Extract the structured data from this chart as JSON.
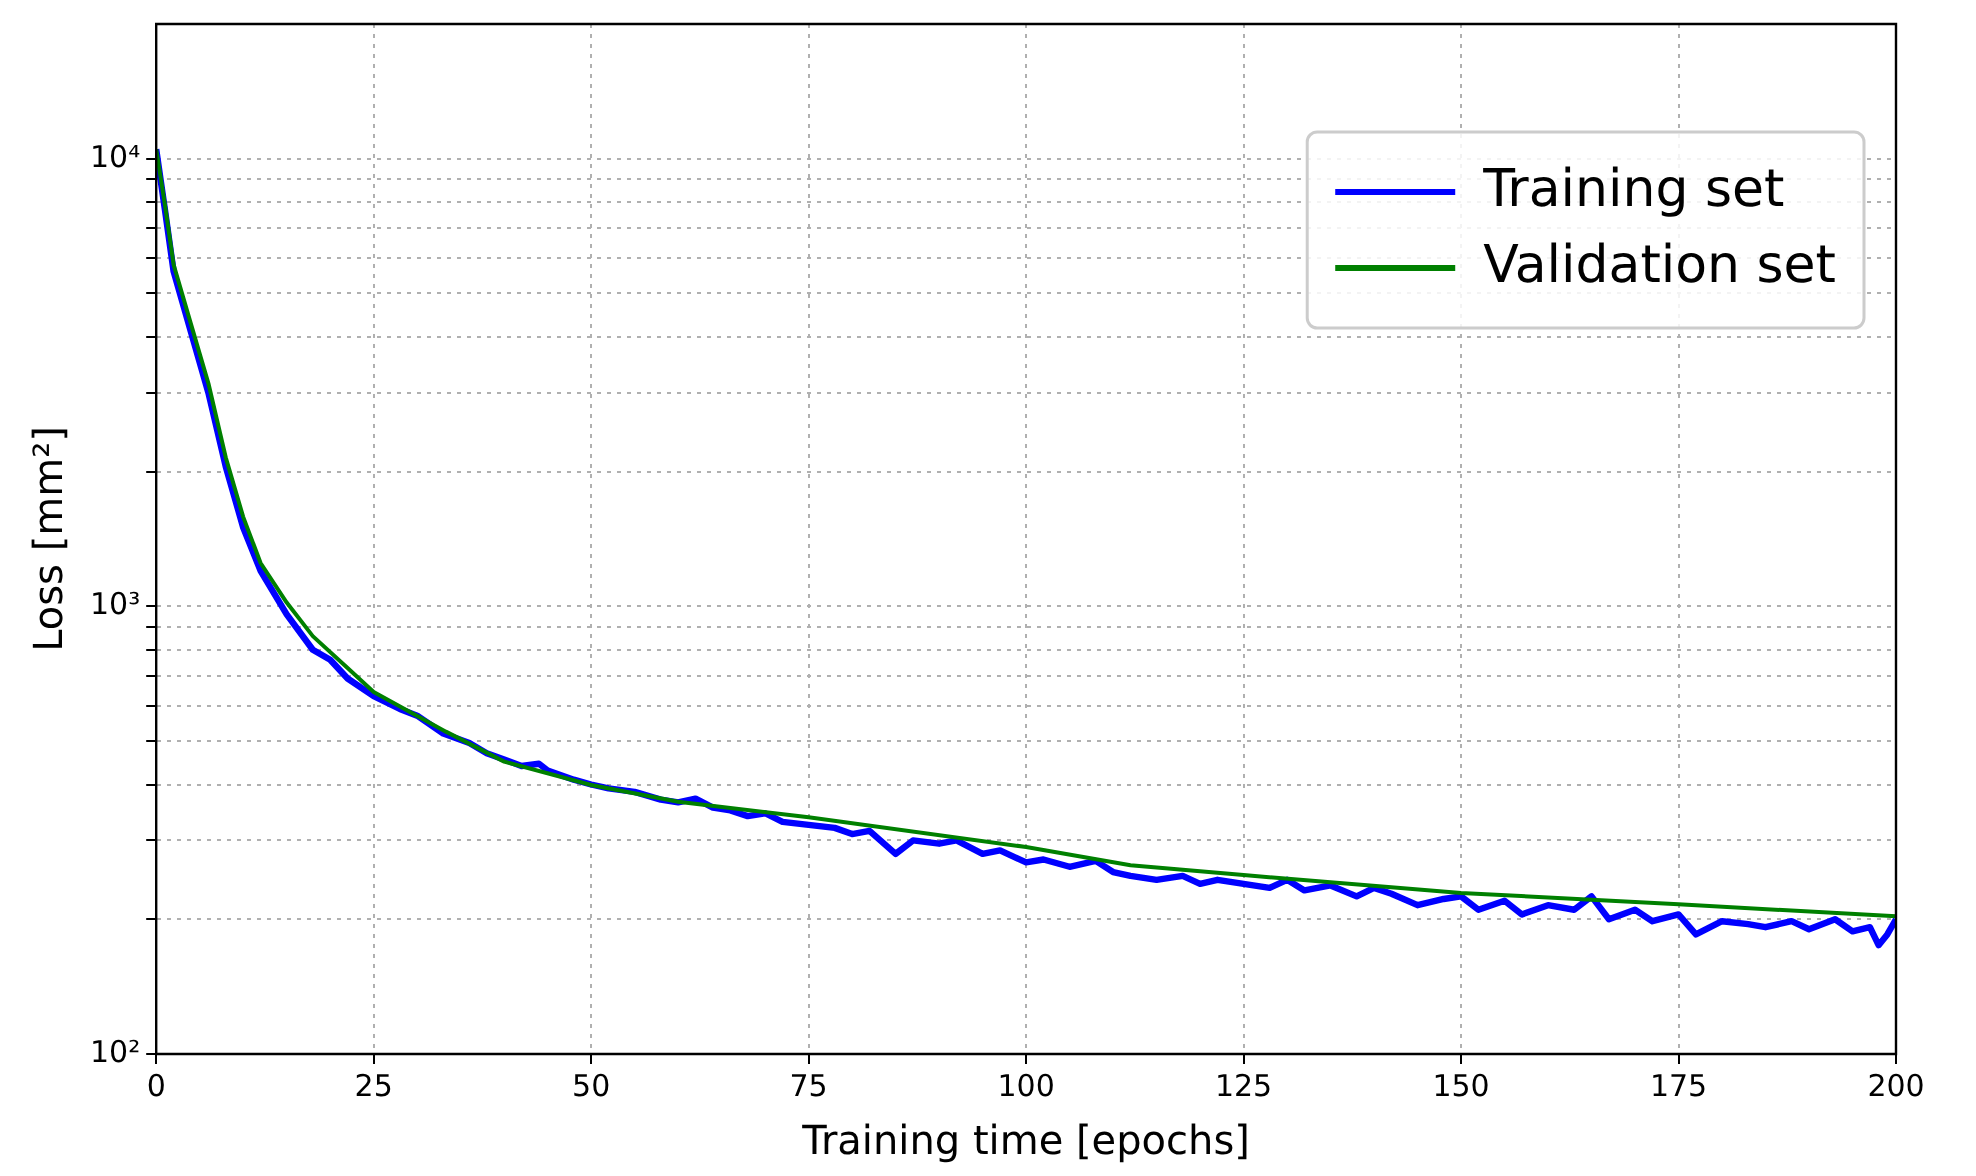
{
  "chart_data": {
    "type": "line",
    "xlabel": "Training time [epochs]",
    "ylabel": "Loss [mm²]",
    "xlim": [
      0,
      200
    ],
    "xticks": [
      0,
      25,
      50,
      75,
      100,
      125,
      150,
      175,
      200
    ],
    "ylim": [
      100,
      20000
    ],
    "log": "y",
    "yticks": [
      {
        "value": 100,
        "label": "10²"
      },
      {
        "value": 200,
        "label": null
      },
      {
        "value": 300,
        "label": null
      },
      {
        "value": 400,
        "label": null
      },
      {
        "value": 500,
        "label": null
      },
      {
        "value": 600,
        "label": null
      },
      {
        "value": 700,
        "label": null
      },
      {
        "value": 800,
        "label": null
      },
      {
        "value": 900,
        "label": null
      },
      {
        "value": 1000,
        "label": "10³"
      },
      {
        "value": 2000,
        "label": null
      },
      {
        "value": 3000,
        "label": null
      },
      {
        "value": 4000,
        "label": null
      },
      {
        "value": 5000,
        "label": null
      },
      {
        "value": 6000,
        "label": null
      },
      {
        "value": 7000,
        "label": null
      },
      {
        "value": 8000,
        "label": null
      },
      {
        "value": 9000,
        "label": null
      },
      {
        "value": 10000,
        "label": "10⁴"
      }
    ],
    "grid": true,
    "legend": "top right",
    "line_style": "solid",
    "marker": "none",
    "series": [
      {
        "name": "Training set",
        "color": "#0000ff",
        "x": [
          0,
          1,
          2,
          4,
          6,
          8,
          10,
          12,
          15,
          18,
          20,
          22,
          25,
          28,
          30,
          33,
          36,
          38,
          40,
          42,
          44,
          45,
          48,
          50,
          52,
          55,
          58,
          60,
          62,
          64,
          66,
          68,
          70,
          72,
          75,
          78,
          80,
          82,
          85,
          87,
          90,
          92,
          95,
          97,
          100,
          102,
          105,
          108,
          110,
          112,
          115,
          118,
          120,
          122,
          125,
          128,
          130,
          132,
          135,
          138,
          140,
          142,
          145,
          148,
          150,
          152,
          155,
          157,
          160,
          163,
          165,
          167,
          170,
          172,
          175,
          177,
          180,
          183,
          185,
          188,
          190,
          193,
          195,
          197,
          198,
          199,
          200
        ],
        "values": [
          10500,
          7700,
          5600,
          4100,
          3000,
          2050,
          1500,
          1200,
          960,
          800,
          760,
          690,
          630,
          590,
          570,
          520,
          495,
          470,
          455,
          440,
          445,
          430,
          410,
          400,
          392,
          385,
          370,
          365,
          372,
          355,
          350,
          340,
          345,
          330,
          325,
          320,
          310,
          315,
          280,
          300,
          295,
          300,
          280,
          285,
          268,
          272,
          262,
          270,
          255,
          250,
          245,
          250,
          240,
          245,
          240,
          235,
          245,
          232,
          238,
          225,
          235,
          228,
          215,
          222,
          225,
          210,
          220,
          205,
          215,
          210,
          225,
          200,
          210,
          198,
          205,
          185,
          198,
          195,
          192,
          198,
          190,
          200,
          188,
          192,
          175,
          185,
          200
        ]
      },
      {
        "name": "Validation set",
        "color": "#008000",
        "x": [
          0,
          1,
          2,
          4,
          6,
          8,
          10,
          12,
          15,
          18,
          22,
          25,
          33.3,
          40,
          50,
          60,
          75,
          100,
          112,
          125,
          150,
          175,
          200
        ],
        "values": [
          10500,
          7900,
          5800,
          4270,
          3150,
          2150,
          1585,
          1250,
          1020,
          858,
          728,
          644,
          525,
          450,
          399,
          366,
          338,
          290,
          264,
          251,
          229,
          216,
          203
        ]
      }
    ]
  }
}
